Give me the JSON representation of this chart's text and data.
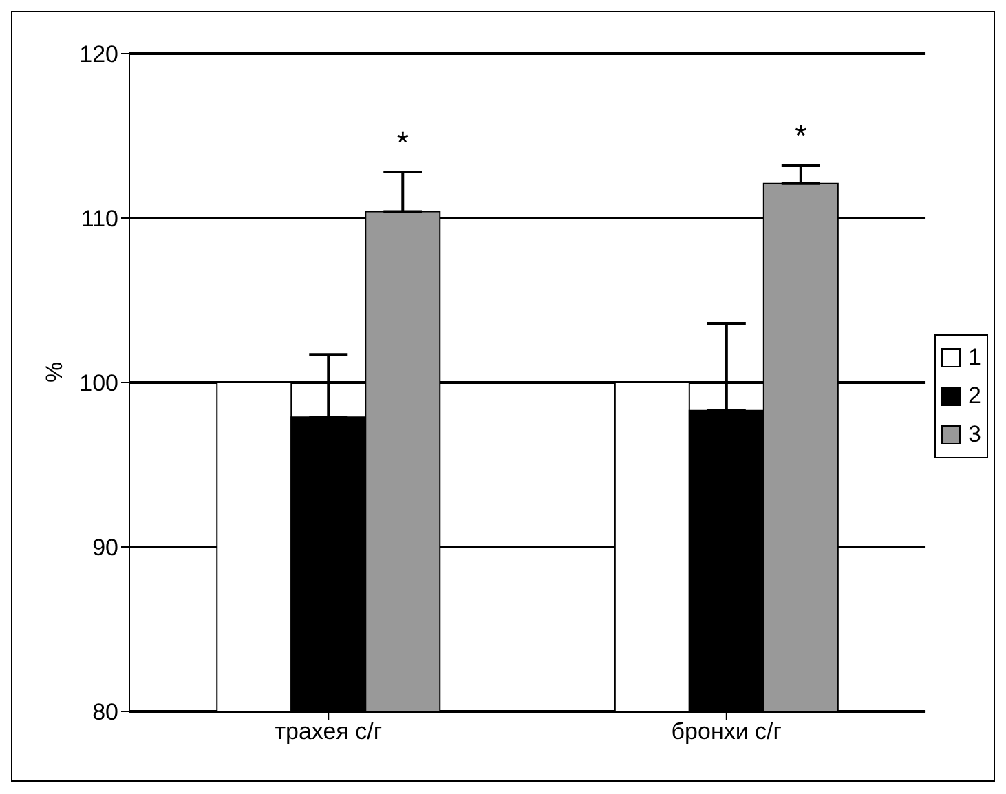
{
  "chart_data": {
    "type": "bar",
    "ylabel": "%",
    "categories": [
      "трахея с/г",
      "бронхи с/г"
    ],
    "series": [
      {
        "name": "1",
        "color": "#ffffff",
        "values": [
          100,
          100
        ]
      },
      {
        "name": "2",
        "color": "#000000",
        "values": [
          97.9,
          98.3
        ],
        "errors": [
          [
            97.9,
            101.7
          ],
          [
            98.3,
            103.6
          ]
        ]
      },
      {
        "name": "3",
        "color": "#999999",
        "values": [
          110.4,
          112.1
        ],
        "errors": [
          [
            110.4,
            112.8
          ],
          [
            112.1,
            113.2
          ]
        ]
      }
    ],
    "ylim": [
      80,
      120
    ],
    "yticks": [
      80,
      90,
      100,
      110,
      120
    ],
    "grid": "y",
    "legend": "right",
    "annotations": [
      "*",
      "*"
    ]
  }
}
